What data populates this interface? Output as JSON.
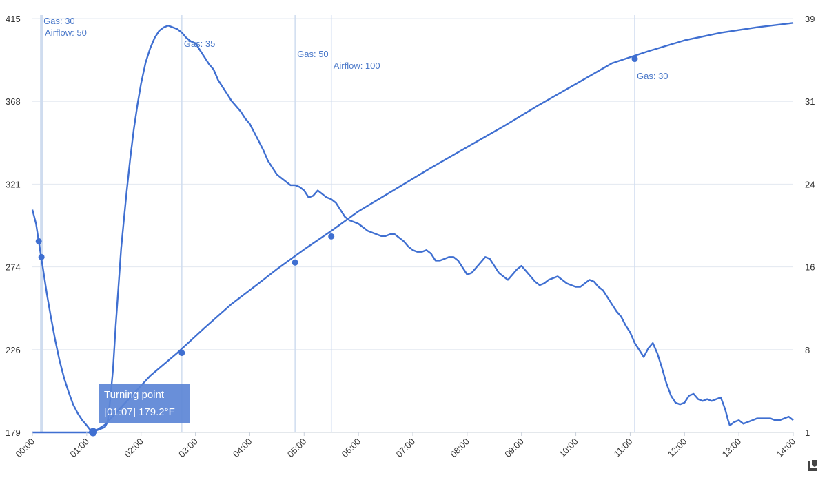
{
  "chart_data": {
    "type": "line",
    "grid": true,
    "colors": {
      "line": "#3f6fd1",
      "grid": "#e3e8f0",
      "event_line": "#cfdcef",
      "annotation": "#4a78c9",
      "tooltip_bg": "#5c86d6"
    },
    "x_ticks": [
      "00:00",
      "01:00",
      "02:00",
      "03:00",
      "04:00",
      "05:00",
      "06:00",
      "07:00",
      "08:00",
      "09:00",
      "10:00",
      "11:00",
      "12:00",
      "13:00",
      "14:00"
    ],
    "x_range_minutes": [
      0,
      840
    ],
    "y_left": {
      "ticks": [
        "179",
        "226",
        "274",
        "321",
        "368",
        "415"
      ],
      "range": [
        179,
        415
      ]
    },
    "y_right": {
      "ticks": [
        "1",
        "8",
        "16",
        "24",
        "31",
        "39"
      ],
      "range": [
        1,
        39
      ]
    },
    "series": [
      {
        "axis": "left",
        "points": [
          [
            0,
            306
          ],
          [
            4,
            298
          ],
          [
            7,
            288
          ],
          [
            10,
            278
          ],
          [
            13,
            268
          ],
          [
            16,
            258
          ],
          [
            20,
            246
          ],
          [
            25,
            232
          ],
          [
            30,
            220
          ],
          [
            35,
            210
          ],
          [
            40,
            202
          ],
          [
            45,
            195
          ],
          [
            50,
            190
          ],
          [
            55,
            186
          ],
          [
            60,
            183
          ],
          [
            63,
            181
          ],
          [
            65,
            180
          ],
          [
            67,
            179.2
          ],
          [
            70,
            180
          ],
          [
            75,
            181
          ],
          [
            80,
            182
          ],
          [
            83,
            185
          ],
          [
            86,
            198
          ],
          [
            89,
            215
          ],
          [
            92,
            240
          ],
          [
            95,
            262
          ],
          [
            98,
            284
          ],
          [
            101,
            300
          ],
          [
            104,
            316
          ],
          [
            108,
            335
          ],
          [
            112,
            352
          ],
          [
            116,
            366
          ],
          [
            120,
            378
          ],
          [
            125,
            390
          ],
          [
            130,
            398
          ],
          [
            135,
            404
          ],
          [
            140,
            408
          ],
          [
            145,
            410
          ],
          [
            150,
            411
          ],
          [
            155,
            410
          ],
          [
            160,
            409
          ],
          [
            165,
            407
          ],
          [
            170,
            404
          ],
          [
            175,
            402
          ],
          [
            180,
            401
          ],
          [
            185,
            397
          ],
          [
            190,
            393
          ],
          [
            195,
            389
          ],
          [
            200,
            386
          ],
          [
            205,
            380
          ],
          [
            210,
            376
          ],
          [
            215,
            372
          ],
          [
            220,
            368
          ],
          [
            225,
            365
          ],
          [
            230,
            362
          ],
          [
            235,
            358
          ],
          [
            240,
            355
          ],
          [
            245,
            350
          ],
          [
            250,
            345
          ],
          [
            255,
            340
          ],
          [
            260,
            334
          ],
          [
            265,
            330
          ],
          [
            270,
            326
          ],
          [
            275,
            324
          ],
          [
            280,
            322
          ],
          [
            285,
            320
          ],
          [
            290,
            320
          ],
          [
            295,
            319
          ],
          [
            300,
            317
          ],
          [
            305,
            313
          ],
          [
            310,
            314
          ],
          [
            315,
            317
          ],
          [
            320,
            315
          ],
          [
            325,
            313
          ],
          [
            330,
            312
          ],
          [
            335,
            310
          ],
          [
            340,
            306
          ],
          [
            345,
            302
          ],
          [
            350,
            300
          ],
          [
            355,
            299
          ],
          [
            360,
            298
          ],
          [
            365,
            296
          ],
          [
            370,
            294
          ],
          [
            375,
            293
          ],
          [
            380,
            292
          ],
          [
            385,
            291
          ],
          [
            390,
            291
          ],
          [
            395,
            292
          ],
          [
            400,
            292
          ],
          [
            405,
            290
          ],
          [
            410,
            288
          ],
          [
            415,
            285
          ],
          [
            420,
            283
          ],
          [
            425,
            282
          ],
          [
            430,
            282
          ],
          [
            435,
            283
          ],
          [
            440,
            281
          ],
          [
            445,
            277
          ],
          [
            450,
            277
          ],
          [
            455,
            278
          ],
          [
            460,
            279
          ],
          [
            465,
            279
          ],
          [
            470,
            277
          ],
          [
            475,
            273
          ],
          [
            480,
            269
          ],
          [
            485,
            270
          ],
          [
            490,
            273
          ],
          [
            495,
            276
          ],
          [
            500,
            279
          ],
          [
            505,
            278
          ],
          [
            510,
            274
          ],
          [
            515,
            270
          ],
          [
            520,
            268
          ],
          [
            525,
            266
          ],
          [
            530,
            269
          ],
          [
            535,
            272
          ],
          [
            540,
            274
          ],
          [
            545,
            271
          ],
          [
            550,
            268
          ],
          [
            555,
            265
          ],
          [
            560,
            263
          ],
          [
            565,
            264
          ],
          [
            570,
            266
          ],
          [
            575,
            267
          ],
          [
            580,
            268
          ],
          [
            585,
            266
          ],
          [
            590,
            264
          ],
          [
            595,
            263
          ],
          [
            600,
            262
          ],
          [
            605,
            262
          ],
          [
            610,
            264
          ],
          [
            615,
            266
          ],
          [
            620,
            265
          ],
          [
            625,
            262
          ],
          [
            630,
            260
          ],
          [
            635,
            256
          ],
          [
            640,
            252
          ],
          [
            645,
            248
          ],
          [
            650,
            245
          ],
          [
            655,
            240
          ],
          [
            660,
            236
          ],
          [
            665,
            230
          ],
          [
            670,
            226
          ],
          [
            675,
            222
          ],
          [
            680,
            227
          ],
          [
            685,
            230
          ],
          [
            690,
            224
          ],
          [
            695,
            216
          ],
          [
            700,
            207
          ],
          [
            705,
            200
          ],
          [
            710,
            196
          ],
          [
            715,
            195
          ],
          [
            720,
            196
          ],
          [
            725,
            200
          ],
          [
            730,
            201
          ],
          [
            735,
            198
          ],
          [
            740,
            197
          ],
          [
            745,
            198
          ],
          [
            750,
            197
          ],
          [
            755,
            198
          ],
          [
            760,
            199
          ],
          [
            765,
            192
          ],
          [
            768,
            186
          ],
          [
            770,
            183
          ],
          [
            775,
            185
          ],
          [
            780,
            186
          ],
          [
            785,
            184
          ],
          [
            790,
            185
          ],
          [
            795,
            186
          ],
          [
            800,
            187
          ],
          [
            805,
            187
          ],
          [
            810,
            187
          ],
          [
            815,
            187
          ],
          [
            820,
            186
          ],
          [
            825,
            186
          ],
          [
            830,
            187
          ],
          [
            835,
            188
          ],
          [
            840,
            186
          ]
        ]
      },
      {
        "axis": "right",
        "points": [
          [
            0,
            1
          ],
          [
            67,
            1
          ],
          [
            80,
            1.7
          ],
          [
            100,
            3.5
          ],
          [
            130,
            6.2
          ],
          [
            160,
            8.3
          ],
          [
            190,
            10.6
          ],
          [
            220,
            12.8
          ],
          [
            250,
            14.7
          ],
          [
            270,
            16
          ],
          [
            300,
            17.8
          ],
          [
            330,
            19.5
          ],
          [
            360,
            21.3
          ],
          [
            400,
            23.3
          ],
          [
            440,
            25.3
          ],
          [
            480,
            27.2
          ],
          [
            520,
            29.1
          ],
          [
            560,
            31.1
          ],
          [
            600,
            33
          ],
          [
            640,
            34.9
          ],
          [
            680,
            36
          ],
          [
            720,
            37
          ],
          [
            760,
            37.7
          ],
          [
            800,
            38.2
          ],
          [
            840,
            38.6
          ]
        ]
      }
    ],
    "events": [
      {
        "t": 10,
        "labels": [
          "Gas: 30",
          "Airflow: 50"
        ]
      },
      {
        "t": 165,
        "labels": [
          "Gas: 35"
        ]
      },
      {
        "t": 290,
        "labels": [
          "Gas: 50"
        ]
      },
      {
        "t": 330,
        "labels": [
          "Airflow: 100"
        ]
      },
      {
        "t": 665,
        "labels": [
          "Gas: 30"
        ]
      }
    ],
    "event_marks": [
      {
        "axis": "left",
        "t": 7,
        "v": 288
      },
      {
        "axis": "left",
        "t": 10,
        "v": 279
      },
      {
        "axis": "right",
        "t": 165,
        "v": 8.3
      },
      {
        "axis": "right",
        "t": 290,
        "v": 16.6
      },
      {
        "axis": "right",
        "t": 330,
        "v": 19
      },
      {
        "axis": "right",
        "t": 665,
        "v": 35.3
      }
    ],
    "tooltip": {
      "title": "Turning point",
      "value": "[01:07] 179.2°F",
      "t": 67,
      "v": 179.2
    }
  }
}
